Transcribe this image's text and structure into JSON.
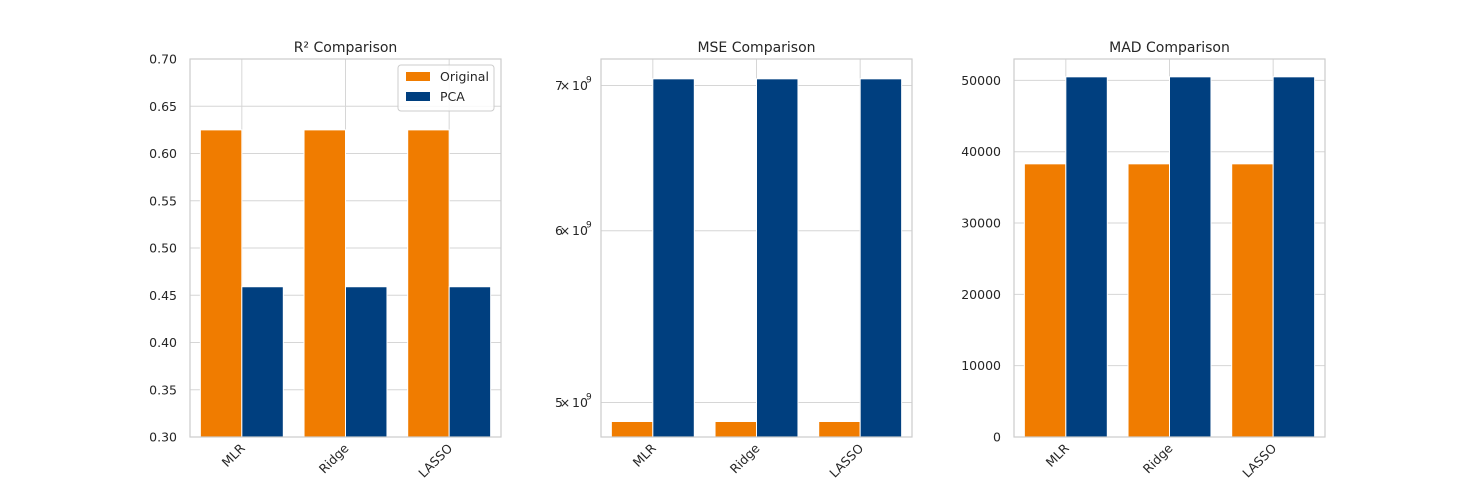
{
  "chart_data": [
    {
      "type": "bar",
      "title": "R²  Comparison",
      "categories": [
        "MLR",
        "Ridge",
        "LASSO"
      ],
      "series": [
        {
          "name": "Original",
          "values": [
            0.625,
            0.625,
            0.625
          ],
          "color": "#f07c00"
        },
        {
          "name": "PCA",
          "values": [
            0.459,
            0.459,
            0.459
          ],
          "color": "#003f7f"
        }
      ],
      "ylim": [
        0.3,
        0.7
      ],
      "yscale": "linear",
      "yticks": [
        {
          "value": 0.3,
          "label": "0.30"
        },
        {
          "value": 0.35,
          "label": "0.35"
        },
        {
          "value": 0.4,
          "label": "0.40"
        },
        {
          "value": 0.45,
          "label": "0.45"
        },
        {
          "value": 0.5,
          "label": "0.50"
        },
        {
          "value": 0.55,
          "label": "0.55"
        },
        {
          "value": 0.6,
          "label": "0.60"
        },
        {
          "value": 0.65,
          "label": "0.65"
        },
        {
          "value": 0.7,
          "label": "0.70"
        }
      ],
      "grid": true,
      "legend": "top-right",
      "xlabel": "",
      "ylabel": ""
    },
    {
      "type": "bar",
      "title": "MSE  Comparison",
      "categories": [
        "MLR",
        "Ridge",
        "LASSO"
      ],
      "series": [
        {
          "name": "Original",
          "values": [
            4900000000,
            4900000000,
            4900000000
          ],
          "color": "#f07c00"
        },
        {
          "name": "PCA",
          "values": [
            7050000000,
            7050000000,
            7050000000
          ],
          "color": "#003f7f"
        }
      ],
      "ylim": [
        4820000000,
        7200000000
      ],
      "yscale": "log",
      "yticks": [
        {
          "value": 5000000000,
          "mantissa": "5",
          "base": "10",
          "exp": "9"
        },
        {
          "value": 6000000000,
          "mantissa": "6",
          "base": "10",
          "exp": "9"
        },
        {
          "value": 7000000000,
          "mantissa": "7",
          "base": "10",
          "exp": "9"
        }
      ],
      "grid": true,
      "legend": "none",
      "xlabel": "",
      "ylabel": ""
    },
    {
      "type": "bar",
      "title": "MAD  Comparison",
      "categories": [
        "MLR",
        "Ridge",
        "LASSO"
      ],
      "series": [
        {
          "name": "Original",
          "values": [
            38300,
            38300,
            38300
          ],
          "color": "#f07c00"
        },
        {
          "name": "PCA",
          "values": [
            50500,
            50500,
            50500
          ],
          "color": "#003f7f"
        }
      ],
      "ylim": [
        0,
        53000
      ],
      "yscale": "linear",
      "yticks": [
        {
          "value": 0,
          "label": "0"
        },
        {
          "value": 10000,
          "label": "10000"
        },
        {
          "value": 20000,
          "label": "20000"
        },
        {
          "value": 30000,
          "label": "30000"
        },
        {
          "value": 40000,
          "label": "40000"
        },
        {
          "value": 50000,
          "label": "50000"
        }
      ],
      "grid": true,
      "legend": "none",
      "xlabel": "",
      "ylabel": ""
    }
  ]
}
